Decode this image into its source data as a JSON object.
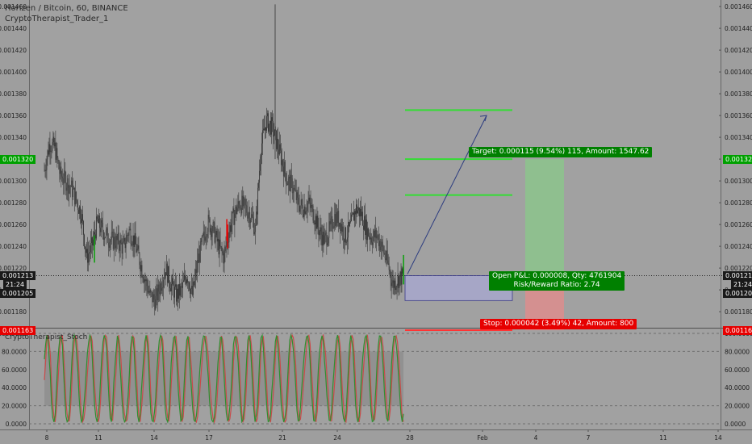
{
  "header": {
    "title": "Horizen / Bitcoin, 60, BINANCE",
    "indicator": "CryptoTherapist_Trader_1",
    "stoch_label": "CryptoTherapist_Stoch"
  },
  "crosshair": {
    "price": "0.001213",
    "time": "21:24",
    "price2": "0.001205"
  },
  "position": {
    "target_label": "Target: 0.000115 (9.54%) 115, Amount: 1547.62",
    "target_price": "0.001320",
    "pnl_label": "Open P&L: 0.000008, Qty: 4761904",
    "rr_label": "Risk/Reward Ratio: 2.74",
    "stop_label": "Stop: 0.000042 (3.49%) 42, Amount: 800",
    "stop_price": "0.001163",
    "entry": 0.001205,
    "target": 0.00132,
    "stop": 0.001163
  },
  "colors": {
    "background": "#9e9e9e",
    "candle": "#333333",
    "green": "#00a000",
    "red": "#e60000",
    "target_zone": "#8fbf8f",
    "stop_zone": "#d49090",
    "entry_zone": "#a6a6c6",
    "dark_tag": "#1a1a1a",
    "guide_green": "#33dd33"
  },
  "chart_data": [
    {
      "type": "candlestick",
      "title": "Horizen / Bitcoin, 60, BINANCE",
      "y_ticks": [
        "0.001460",
        "0.001440",
        "0.001420",
        "0.001400",
        "0.001380",
        "0.001360",
        "0.001340",
        "0.001320",
        "0.001300",
        "0.001280",
        "0.001260",
        "0.001240",
        "0.001220",
        "0.001200",
        "0.001180"
      ],
      "x_ticks": [
        "8",
        "11",
        "14",
        "17",
        "21",
        "24",
        "28",
        "Feb",
        "4",
        "7",
        "11",
        "14"
      ],
      "ylim": [
        0.001166,
        0.001466
      ],
      "price_path": [
        [
          0,
          0.00131
        ],
        [
          1,
          0.001335
        ],
        [
          2,
          0.00133
        ],
        [
          3,
          0.001305
        ],
        [
          4,
          0.0013
        ],
        [
          5,
          0.001295
        ],
        [
          6,
          0.001283
        ],
        [
          7,
          0.00127
        ],
        [
          8,
          0.00123
        ],
        [
          9,
          0.00124
        ],
        [
          10,
          0.001262
        ],
        [
          11,
          0.001255
        ],
        [
          12,
          0.001248
        ],
        [
          13,
          0.001245
        ],
        [
          14,
          0.001244
        ],
        [
          15,
          0.001238
        ],
        [
          16,
          0.001255
        ],
        [
          17,
          0.001245
        ],
        [
          18,
          0.001228
        ],
        [
          19,
          0.00121
        ],
        [
          20,
          0.001195
        ],
        [
          21,
          0.00119
        ],
        [
          22,
          0.001205
        ],
        [
          23,
          0.00122
        ],
        [
          24,
          0.001205
        ],
        [
          25,
          0.001195
        ],
        [
          26,
          0.0012
        ],
        [
          27,
          0.001215
        ],
        [
          28,
          0.001195
        ],
        [
          29,
          0.001225
        ],
        [
          30,
          0.001245
        ],
        [
          31,
          0.001262
        ],
        [
          32,
          0.001255
        ],
        [
          33,
          0.00124
        ],
        [
          34,
          0.00123
        ],
        [
          35,
          0.001255
        ],
        [
          36,
          0.00127
        ],
        [
          37,
          0.00128
        ],
        [
          38,
          0.001275
        ],
        [
          39,
          0.00127
        ],
        [
          40,
          0.001255
        ],
        [
          41,
          0.00133
        ],
        [
          42,
          0.001355
        ],
        [
          43,
          0.00135
        ],
        [
          44,
          0.001335
        ],
        [
          45,
          0.001318
        ],
        [
          46,
          0.0013
        ],
        [
          47,
          0.001295
        ],
        [
          48,
          0.00128
        ],
        [
          49,
          0.001275
        ],
        [
          50,
          0.00128
        ],
        [
          51,
          0.00127
        ],
        [
          52,
          0.001255
        ],
        [
          53,
          0.001245
        ],
        [
          54,
          0.001255
        ],
        [
          55,
          0.001268
        ],
        [
          56,
          0.001263
        ],
        [
          57,
          0.001248
        ],
        [
          58,
          0.001258
        ],
        [
          59,
          0.001275
        ],
        [
          60,
          0.00127
        ],
        [
          61,
          0.001255
        ],
        [
          62,
          0.001248
        ],
        [
          63,
          0.00125
        ],
        [
          64,
          0.001238
        ],
        [
          65,
          0.001225
        ],
        [
          66,
          0.001205
        ],
        [
          67,
          0.00121
        ],
        [
          68,
          0.001213
        ]
      ]
    },
    {
      "type": "line",
      "title": "CryptoTherapist_Stoch",
      "y_ticks": [
        "100.0000",
        "80.0000",
        "60.0000",
        "40.0000",
        "20.0000",
        "0.0000"
      ],
      "ylim": [
        0,
        100
      ],
      "band": [
        20,
        80
      ]
    }
  ]
}
